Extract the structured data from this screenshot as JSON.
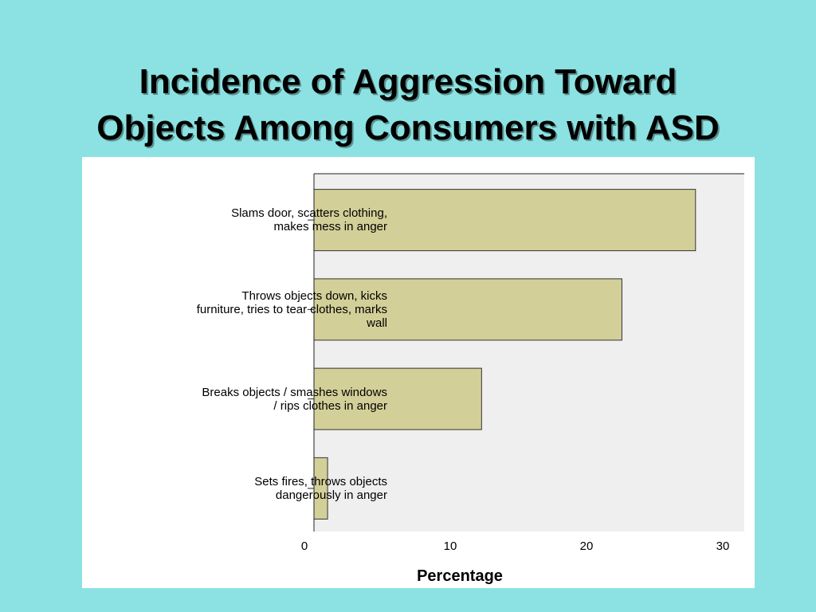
{
  "slide": {
    "title_line1": "Incidence of Aggression Toward",
    "title_line2": "Objects Among Consumers with ASD"
  },
  "chart_data": {
    "type": "bar",
    "orientation": "horizontal",
    "categories": [
      [
        "Slams door, scatters clothing,",
        "makes mess in anger"
      ],
      [
        "Throws objects down, kicks",
        "furniture, tries to tear clothes, marks",
        "wall"
      ],
      [
        "Breaks objects / smashes windows",
        "/ rips clothes in anger"
      ],
      [
        "Sets fires, throws objects",
        "dangerously in anger"
      ]
    ],
    "values": [
      28,
      22.6,
      12.3,
      1.0
    ],
    "xlabel": "Percentage",
    "ylabel": "",
    "xlim": [
      0,
      32
    ],
    "xticks": [
      "0",
      "10",
      "20",
      "30"
    ],
    "colors": {
      "bar_fill": "#d3cf98",
      "bar_stroke": "#333333",
      "plot_background": "#efefef"
    }
  }
}
